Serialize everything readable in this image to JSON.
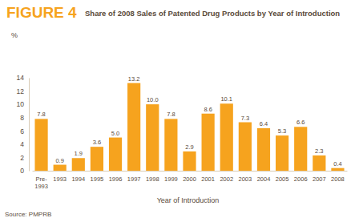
{
  "chart_data": {
    "type": "bar",
    "title": "FIGURE 4",
    "subtitle": "Share of 2008 Sales of Patented Drug Products by Year of Introduction",
    "y_label": "%",
    "x_label": "Year of Introduction",
    "source": "Source: PMPRB",
    "categories": [
      "Pre-1993",
      "1993",
      "1994",
      "1995",
      "1996",
      "1997",
      "1998",
      "1999",
      "2000",
      "2001",
      "2002",
      "2003",
      "2004",
      "2005",
      "2006",
      "2007",
      "2008"
    ],
    "values": [
      7.8,
      0.9,
      1.9,
      3.6,
      5.0,
      13.2,
      10.0,
      7.8,
      2.9,
      8.6,
      10.1,
      7.3,
      6.4,
      5.3,
      6.6,
      2.3,
      0.4
    ],
    "value_labels": [
      "7.8",
      "0.9",
      "1.9",
      "3.6",
      "5.0",
      "13.2",
      "10.0",
      "7.8",
      "2.9",
      "8.6",
      "10.1",
      "7.3",
      "6.4",
      "5.3",
      "6.6",
      "2.3",
      "0.4"
    ],
    "color": "#f6a31e",
    "ylim": [
      0,
      14
    ],
    "yticks": [
      0,
      2,
      4,
      6,
      8,
      10,
      12,
      14
    ],
    "grid": false,
    "data_labels": true
  }
}
